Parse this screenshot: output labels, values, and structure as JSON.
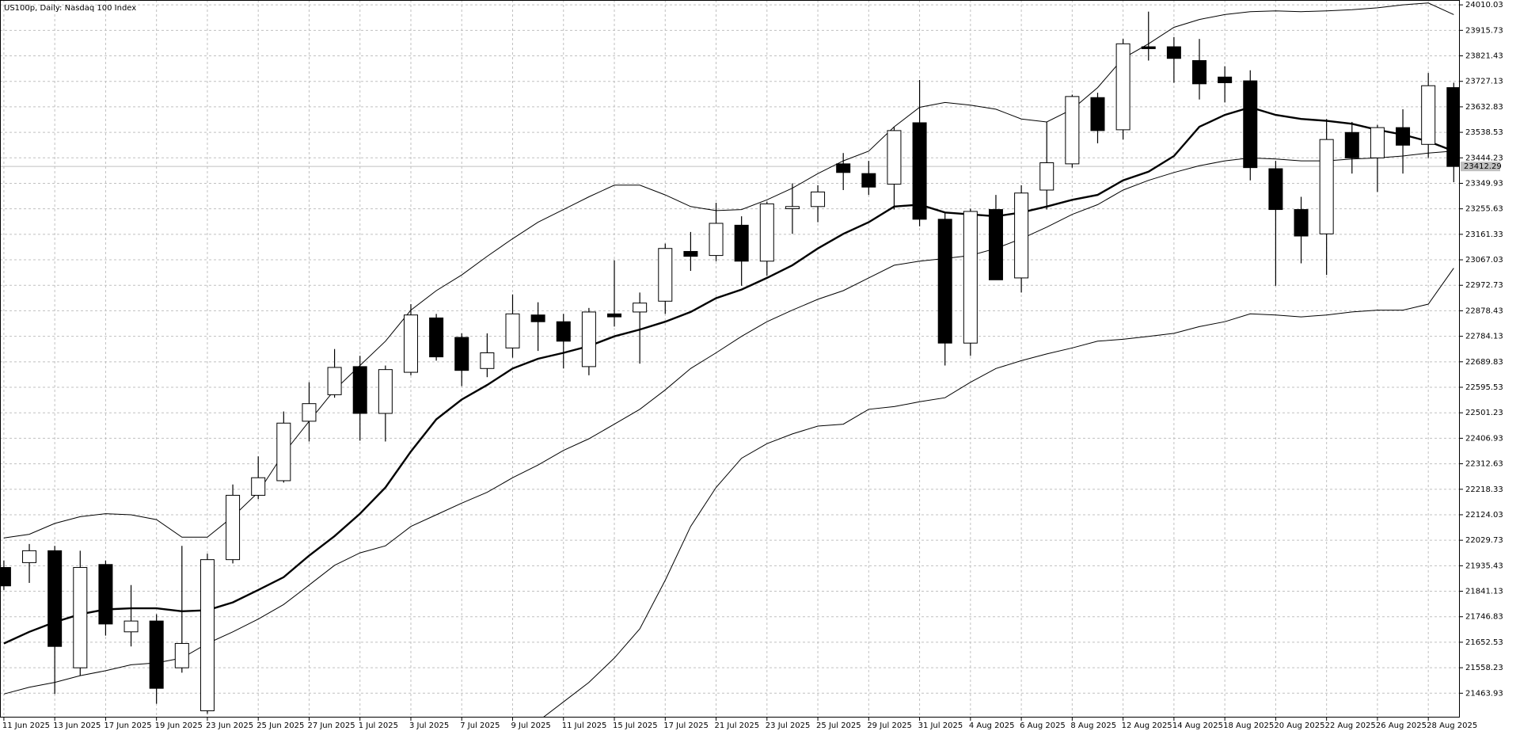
{
  "chart_data": {
    "type": "candlestick",
    "title": "US100p, Daily:  Nasdaq 100 Index",
    "categories": [
      "11 Jun 2025",
      null,
      "13 Jun 2025",
      null,
      "17 Jun 2025",
      null,
      "19 Jun 2025",
      null,
      "23 Jun 2025",
      null,
      "25 Jun 2025",
      null,
      "27 Jun 2025",
      null,
      "1 Jul 2025",
      null,
      "3 Jul 2025",
      null,
      "7 Jul 2025",
      null,
      "9 Jul 2025",
      null,
      "11 Jul 2025",
      null,
      "15 Jul 2025",
      null,
      "17 Jul 2025",
      null,
      "21 Jul 2025",
      null,
      "23 Jul 2025",
      null,
      "25 Jul 2025",
      null,
      "29 Jul 2025",
      null,
      "31 Jul 2025",
      null,
      "4 Aug 2025",
      null,
      "6 Aug 2025",
      null,
      "8 Aug 2025",
      null,
      "12 Aug 2025",
      null,
      "14 Aug 2025",
      null,
      "18 Aug 2025",
      null,
      "20 Aug 2025",
      null,
      "22 Aug 2025",
      null,
      "26 Aug 2025",
      null,
      "28 Aug 2025",
      null
    ],
    "open": [
      21929,
      21947,
      21991,
      21558,
      21940,
      21691,
      21731,
      21558,
      21399,
      21958,
      22196,
      22250,
      22470,
      22568,
      22672,
      22499,
      22651,
      22852,
      22780,
      22665,
      22741,
      22863,
      22838,
      22672,
      22867,
      22874,
      22914,
      23098,
      23083,
      23195,
      23062,
      23256,
      23264,
      23422,
      23386,
      23347,
      23574,
      23217,
      22759,
      23253,
      23000,
      23325,
      23422,
      23667,
      23548,
      23855,
      23855,
      23804,
      23743,
      23729,
      23404,
      23253,
      23163,
      23538,
      23444,
      23556,
      23494,
      23704
    ],
    "high": [
      21955,
      22016,
      22009,
      21991,
      21955,
      21864,
      21756,
      22009,
      21980,
      22236,
      22340,
      22506,
      22614,
      22737,
      22712,
      22676,
      22903,
      22867,
      22795,
      22795,
      22939,
      22910,
      22867,
      22889,
      23065,
      22946,
      23127,
      23170,
      23278,
      23228,
      23282,
      23350,
      23343,
      23462,
      23433,
      23559,
      23732,
      23242,
      23256,
      23307,
      23343,
      23577,
      23678,
      23685,
      23884,
      23985,
      23891,
      23884,
      23783,
      23768,
      23433,
      23300,
      23588,
      23577,
      23566,
      23624,
      23758,
      23722
    ],
    "low": [
      21846,
      21872,
      21461,
      21529,
      21677,
      21637,
      21425,
      21540,
      21388,
      21944,
      22182,
      22243,
      22395,
      22557,
      22398,
      22395,
      22640,
      22694,
      22600,
      22633,
      22705,
      22730,
      22665,
      22640,
      22820,
      22683,
      22867,
      23026,
      23062,
      22971,
      23008,
      23163,
      23206,
      23325,
      23307,
      23253,
      23191,
      22676,
      22712,
      22993,
      22946,
      23253,
      23408,
      23498,
      23512,
      23804,
      23722,
      23660,
      23649,
      23361,
      22971,
      23054,
      23011,
      23386,
      23318,
      23386,
      23444,
      23354
    ],
    "close": [
      21861,
      21991,
      21637,
      21929,
      21720,
      21731,
      21482,
      21648,
      21958,
      22196,
      22261,
      22463,
      22535,
      22669,
      22499,
      22661,
      22863,
      22708,
      22658,
      22723,
      22867,
      22838,
      22766,
      22874,
      22856,
      22907,
      23109,
      23080,
      23202,
      23062,
      23274,
      23264,
      23318,
      23390,
      23336,
      23545,
      23217,
      22759,
      23246,
      22993,
      23314,
      23426,
      23671,
      23545,
      23866,
      23848,
      23812,
      23718,
      23722,
      23408,
      23253,
      23155,
      23512,
      23444,
      23556,
      23491,
      23711,
      23412.29
    ],
    "up_color": "#ffffff",
    "down_color": "#000000",
    "overlays": [
      {
        "color": "#000000",
        "weight": "bold",
        "values": [
          21648,
          21691,
          21727,
          21756,
          21774,
          21778,
          21778,
          21767,
          21771,
          21800,
          21846,
          21893,
          21973,
          22045,
          22128,
          22225,
          22358,
          22477,
          22550,
          22604,
          22665,
          22701,
          22723,
          22748,
          22784,
          22809,
          22838,
          22874,
          22925,
          22957,
          23000,
          23047,
          23109,
          23163,
          23206,
          23264,
          23271,
          23242,
          23235,
          23228,
          23242,
          23264,
          23289,
          23307,
          23361,
          23393,
          23451,
          23559,
          23603,
          23631,
          23603,
          23588,
          23581,
          23570,
          23548,
          23530,
          23505,
          23469
        ]
      },
      {
        "color": "#000000",
        "weight": "thin",
        "values": [
          21461,
          21486,
          21504,
          21529,
          21547,
          21569,
          21576,
          21594,
          21648,
          21691,
          21738,
          21792,
          21864,
          21937,
          21983,
          22009,
          22081,
          22124,
          22167,
          22207,
          22261,
          22308,
          22362,
          22405,
          22459,
          22514,
          22586,
          22665,
          22723,
          22784,
          22838,
          22881,
          22921,
          22953,
          23000,
          23047,
          23062,
          23072,
          23083,
          23109,
          23145,
          23188,
          23235,
          23271,
          23325,
          23361,
          23390,
          23415,
          23433,
          23444,
          23440,
          23433,
          23433,
          23440,
          23444,
          23451,
          23462,
          23469
        ]
      },
      {
        "color": "#000000",
        "weight": "thin",
        "values": [
          22038,
          22052,
          22092,
          22117,
          22128,
          22124,
          22106,
          22041,
          22041,
          22117,
          22207,
          22351,
          22470,
          22586,
          22676,
          22766,
          22881,
          22953,
          23011,
          23080,
          23145,
          23206,
          23253,
          23300,
          23343,
          23343,
          23307,
          23264,
          23249,
          23253,
          23289,
          23332,
          23386,
          23433,
          23469,
          23559,
          23631,
          23649,
          23639,
          23624,
          23588,
          23577,
          23624,
          23704,
          23812,
          23866,
          23927,
          23956,
          23974,
          23985,
          23988,
          23985,
          23988,
          23992,
          23999,
          24010,
          24017,
          23974
        ]
      },
      {
        "color": "#000000",
        "weight": "thin",
        "values": [
          null,
          null,
          null,
          null,
          null,
          null,
          null,
          null,
          null,
          null,
          null,
          null,
          null,
          null,
          null,
          null,
          null,
          null,
          null,
          null,
          null,
          21360,
          21432,
          21504,
          21594,
          21702,
          21882,
          22081,
          22225,
          22333,
          22387,
          22423,
          22452,
          22459,
          22514,
          22524,
          22542,
          22557,
          22614,
          22665,
          22694,
          22719,
          22741,
          22766,
          22773,
          22784,
          22795,
          22820,
          22838,
          22867,
          22863,
          22856,
          22863,
          22874,
          22881,
          22881,
          22903,
          23036
        ]
      }
    ],
    "current_price": 23412.29,
    "ylim": [
      21374,
      24028
    ],
    "yticks": [
      24010.03,
      23915.73,
      23821.43,
      23727.13,
      23632.83,
      23538.53,
      23444.23,
      23349.93,
      23255.63,
      23161.33,
      23067.03,
      22972.73,
      22878.43,
      22784.13,
      22689.83,
      22595.53,
      22501.23,
      22406.93,
      22312.63,
      22218.33,
      22124.03,
      22029.73,
      21935.43,
      21841.13,
      21746.83,
      21652.53,
      21558.23,
      21463.93
    ],
    "grid": true
  }
}
